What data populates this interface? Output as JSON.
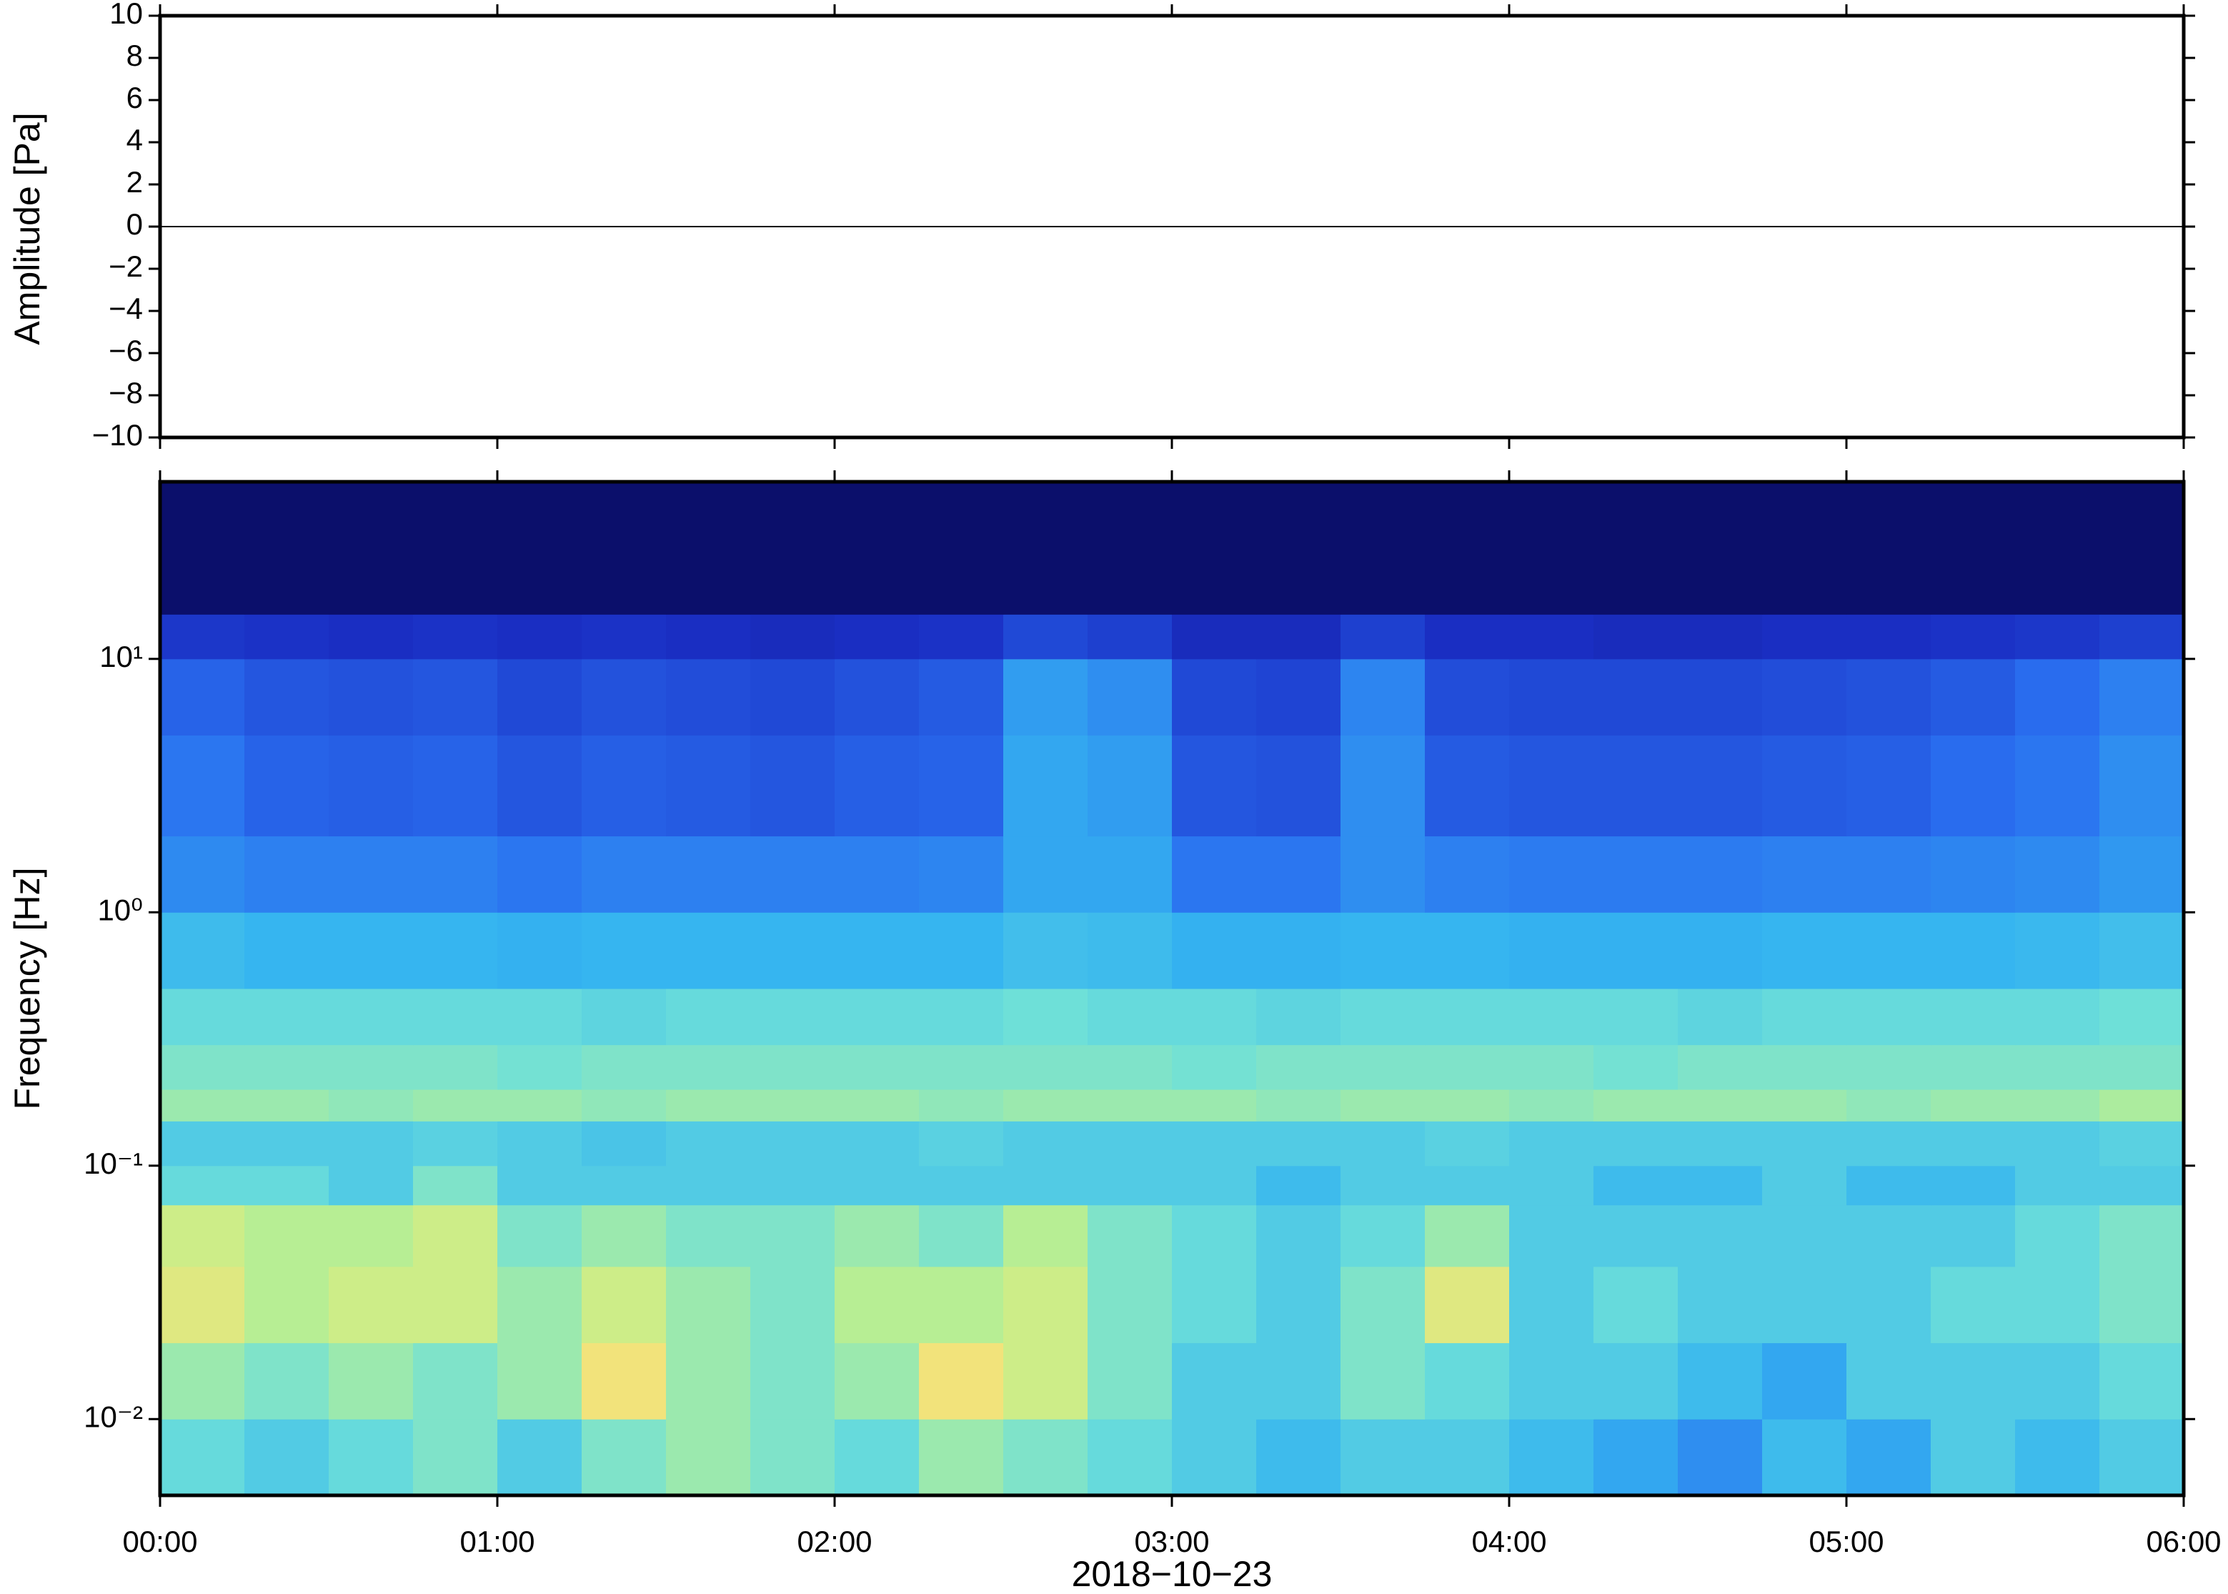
{
  "chart_data": [
    {
      "type": "line",
      "ylabel": "Amplitude [Pa]",
      "x": [
        0,
        1,
        2,
        3,
        4,
        5,
        6
      ],
      "series": [
        {
          "color": "#000000",
          "values": [
            0,
            0,
            0,
            0,
            0,
            0,
            0
          ]
        }
      ],
      "xlim": [
        0,
        6
      ],
      "xticks": [
        0,
        1,
        2,
        3,
        4,
        5,
        6
      ],
      "ylim": [
        -10,
        10
      ],
      "yticks": [
        {
          "value": -10,
          "label": "−10"
        },
        {
          "value": -8,
          "label": "−8"
        },
        {
          "value": -6,
          "label": "−6"
        },
        {
          "value": -4,
          "label": "−4"
        },
        {
          "value": -2,
          "label": "−2"
        },
        0,
        2,
        4,
        6,
        8,
        10
      ]
    },
    {
      "type": "heatmap",
      "ylabel": "Frequency [Hz]",
      "xlabel": "2018−10−23",
      "log_y": true,
      "xlim": [
        0,
        6
      ],
      "xticks": [
        {
          "value": 0,
          "label": "00:00"
        },
        {
          "value": 1,
          "label": "01:00"
        },
        {
          "value": 2,
          "label": "02:00"
        },
        {
          "value": 3,
          "label": "03:00"
        },
        {
          "value": 4,
          "label": "04:00"
        },
        {
          "value": 5,
          "label": "05:00"
        },
        {
          "value": 6,
          "label": "06:00"
        }
      ],
      "ylim": [
        0.005,
        50
      ],
      "yticks": [
        {
          "value": 0.01,
          "label": "10⁻²"
        },
        {
          "value": 0.1,
          "label": "10⁻¹"
        },
        {
          "value": 1,
          "label": "10⁰"
        },
        {
          "value": 10,
          "label": "10¹"
        }
      ],
      "x_edges": [
        0,
        0.25,
        0.5,
        0.75,
        1,
        1.25,
        1.5,
        1.75,
        2,
        2.25,
        2.5,
        2.75,
        3,
        3.25,
        3.5,
        3.75,
        4,
        4.25,
        4.5,
        4.75,
        5,
        5.25,
        5.5,
        5.75,
        6
      ],
      "y_edges": [
        0.005,
        0.01,
        0.02,
        0.04,
        0.07,
        0.1,
        0.15,
        0.2,
        0.3,
        0.5,
        1,
        2,
        5,
        10,
        15,
        50
      ],
      "zlim": [
        0,
        10
      ],
      "colormap": [
        "#0b0f6b",
        "#1a2fc4",
        "#2a6ff0",
        "#35b5f0",
        "#6fe0d8",
        "#bff08c",
        "#f5e27a",
        "#f7b458"
      ],
      "z": [
        [
          5.5,
          5,
          5.5,
          6,
          5,
          6,
          6.5,
          6,
          5.5,
          6.5,
          6,
          5.5,
          5,
          4.5,
          5,
          5,
          4.5,
          4,
          3.5,
          4.5,
          4,
          5,
          4.5,
          5
        ],
        [
          6.5,
          6,
          6.5,
          6,
          6.5,
          8.5,
          6.5,
          6,
          6.5,
          8.5,
          7.5,
          6,
          5,
          5,
          6,
          5.5,
          5,
          5,
          4.5,
          4,
          5,
          5,
          5,
          5.5
        ],
        [
          8,
          7,
          7.5,
          7.5,
          6.5,
          7.5,
          6.5,
          6,
          7,
          7,
          7.5,
          6,
          5.5,
          5,
          6,
          8,
          5,
          5.5,
          5,
          5,
          5,
          5.5,
          5.5,
          6
        ],
        [
          7.5,
          7,
          7,
          7.5,
          6,
          6.5,
          6,
          6,
          6.5,
          6,
          7,
          6,
          5.5,
          5,
          5.5,
          6.5,
          5,
          5,
          5,
          5,
          5,
          5,
          5.5,
          6
        ],
        [
          5.5,
          5.5,
          5,
          6,
          5,
          5,
          5,
          5,
          5,
          5,
          5,
          5,
          5,
          4.5,
          5,
          5,
          5,
          4.5,
          4.5,
          5,
          4.5,
          4.5,
          5,
          5
        ],
        [
          5,
          5,
          5,
          5.2,
          5,
          4.8,
          5,
          5,
          5,
          5.2,
          5,
          5,
          5,
          5,
          5,
          5.2,
          5,
          5,
          5,
          5,
          5,
          5,
          5,
          5.2
        ],
        [
          6.5,
          6.5,
          6.3,
          6.5,
          6.5,
          6.3,
          6.5,
          6.5,
          6.5,
          6.3,
          6.5,
          6.5,
          6.5,
          6.3,
          6.5,
          6.5,
          6.3,
          6.5,
          6.5,
          6.5,
          6.3,
          6.5,
          6.5,
          6.8
        ],
        [
          6,
          6,
          6,
          6,
          5.8,
          6,
          6,
          6,
          6,
          6,
          6,
          6,
          5.8,
          6,
          6,
          6,
          6,
          5.8,
          6,
          6,
          6,
          6,
          6,
          6
        ],
        [
          5.5,
          5.5,
          5.5,
          5.5,
          5.5,
          5.3,
          5.5,
          5.5,
          5.5,
          5.5,
          5.7,
          5.5,
          5.5,
          5.3,
          5.5,
          5.5,
          5.5,
          5.5,
          5.3,
          5.5,
          5.5,
          5.5,
          5.5,
          5.7
        ],
        [
          4.5,
          4.3,
          4.3,
          4.3,
          4.2,
          4.3,
          4.3,
          4.3,
          4.3,
          4.3,
          4.6,
          4.5,
          4.2,
          4.2,
          4.3,
          4.3,
          4.2,
          4.2,
          4.2,
          4.3,
          4.3,
          4.3,
          4.4,
          4.6
        ],
        [
          3.4,
          3.2,
          3.2,
          3.2,
          3,
          3.2,
          3.2,
          3.2,
          3.2,
          3.3,
          4,
          4,
          3,
          3,
          3.5,
          3.2,
          3.1,
          3.1,
          3.1,
          3.2,
          3.2,
          3.3,
          3.4,
          3.7
        ],
        [
          3,
          2.6,
          2.5,
          2.6,
          2.3,
          2.5,
          2.4,
          2.3,
          2.5,
          2.6,
          4,
          3.8,
          2.3,
          2.2,
          3.5,
          2.4,
          2.3,
          2.3,
          2.3,
          2.4,
          2.5,
          2.8,
          3,
          3.5
        ],
        [
          2.6,
          2.3,
          2.2,
          2.3,
          2,
          2.2,
          2.1,
          2,
          2.2,
          2.4,
          3.8,
          3.5,
          2,
          1.9,
          3.3,
          2.1,
          2,
          2,
          2,
          2.1,
          2.2,
          2.4,
          2.8,
          3.2
        ],
        [
          1.6,
          1.5,
          1.4,
          1.5,
          1.4,
          1.5,
          1.4,
          1.3,
          1.4,
          1.5,
          2,
          1.8,
          1.3,
          1.3,
          1.8,
          1.4,
          1.4,
          1.3,
          1.3,
          1.4,
          1.4,
          1.5,
          1.6,
          1.8
        ],
        [
          0,
          0,
          0,
          0,
          0,
          0,
          0,
          0,
          0,
          0,
          0,
          0,
          0,
          0,
          0,
          0,
          0,
          0,
          0,
          0,
          0,
          0,
          0,
          0
        ]
      ]
    }
  ]
}
